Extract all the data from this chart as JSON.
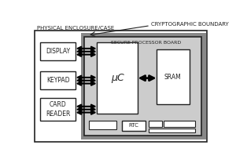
{
  "bg_color": "#ffffff",
  "title_physical": "PHYSICAL ENCLOSURE/CASE",
  "title_crypto": "CRYPTOGRAPHIC BOUNDARY",
  "title_secure": "SECURE PROCESSOR BOARD",
  "labels": {
    "display": "DISPLAY",
    "keypad": "KEYPAD",
    "card_reader": "CARD\nREADER",
    "uc": "μC",
    "sram": "SRAM",
    "rtc": "RTC"
  },
  "line_color": "#222222",
  "box_fill": "#ffffff",
  "inner_fill": "#cccccc",
  "font_size_small": 5.0,
  "font_size_label": 5.5,
  "font_size_uc": 9
}
